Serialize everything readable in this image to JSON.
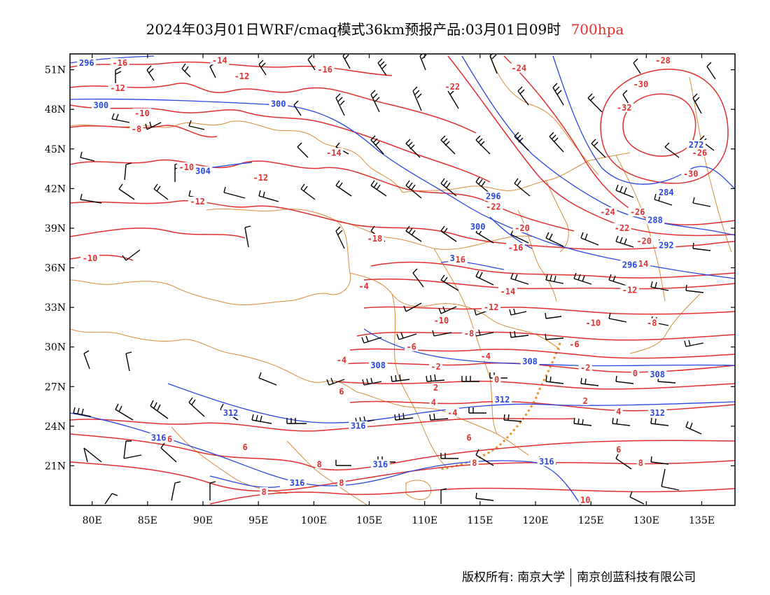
{
  "title": {
    "main": "2024年03月01日WRF/cmaq模式36km预报产品:03月01日09时",
    "level": "700hpa"
  },
  "colors": {
    "temperature": "#e03030",
    "height": "#2a46e0",
    "boundary": "#d98c3a",
    "wind": "#000000"
  },
  "axes": {
    "lat_ticks": [
      {
        "value": 51,
        "label": "51N"
      },
      {
        "value": 48,
        "label": "48N"
      },
      {
        "value": 45,
        "label": "45N"
      },
      {
        "value": 42,
        "label": "42N"
      },
      {
        "value": 39,
        "label": "39N"
      },
      {
        "value": 36,
        "label": "36N"
      },
      {
        "value": 33,
        "label": "33N"
      },
      {
        "value": 30,
        "label": "30N"
      },
      {
        "value": 27,
        "label": "27N"
      },
      {
        "value": 24,
        "label": "24N"
      },
      {
        "value": 21,
        "label": "21N"
      }
    ],
    "lon_ticks": [
      {
        "value": 80,
        "label": "80E"
      },
      {
        "value": 85,
        "label": "85E"
      },
      {
        "value": 90,
        "label": "90E"
      },
      {
        "value": 95,
        "label": "95E"
      },
      {
        "value": 100,
        "label": "100E"
      },
      {
        "value": 105,
        "label": "105E"
      },
      {
        "value": 110,
        "label": "110E"
      },
      {
        "value": 115,
        "label": "115E"
      },
      {
        "value": 120,
        "label": "120E"
      },
      {
        "value": 125,
        "label": "125E"
      },
      {
        "value": 130,
        "label": "130E"
      },
      {
        "value": 135,
        "label": "135E"
      }
    ]
  },
  "temperature_labels": [
    {
      "text": "-16",
      "lon": 82.5,
      "lat": 51.4
    },
    {
      "text": "-14",
      "lon": 91.5,
      "lat": 51.6
    },
    {
      "text": "-12",
      "lon": 93.5,
      "lat": 50.4
    },
    {
      "text": "-16",
      "lon": 101.0,
      "lat": 50.9
    },
    {
      "text": "-12",
      "lon": 82.3,
      "lat": 49.5
    },
    {
      "text": "-10",
      "lon": 84.5,
      "lat": 47.6
    },
    {
      "text": "-8",
      "lon": 84.0,
      "lat": 46.4
    },
    {
      "text": "-22",
      "lon": 112.5,
      "lat": 49.6
    },
    {
      "text": "-24",
      "lon": 118.5,
      "lat": 51.0
    },
    {
      "text": "-28",
      "lon": 131.5,
      "lat": 51.6
    },
    {
      "text": "-30",
      "lon": 129.5,
      "lat": 49.8
    },
    {
      "text": "-32",
      "lon": 128.0,
      "lat": 48.0
    },
    {
      "text": "-10",
      "lon": 88.5,
      "lat": 43.5
    },
    {
      "text": "-14",
      "lon": 101.8,
      "lat": 44.6
    },
    {
      "text": "-12",
      "lon": 95.2,
      "lat": 42.7
    },
    {
      "text": "-12",
      "lon": 89.5,
      "lat": 40.9
    },
    {
      "text": "-26",
      "lon": 134.8,
      "lat": 44.6
    },
    {
      "text": "-30",
      "lon": 134.0,
      "lat": 43.0
    },
    {
      "text": "-22",
      "lon": 116.2,
      "lat": 40.5
    },
    {
      "text": "-24",
      "lon": 126.5,
      "lat": 40.1
    },
    {
      "text": "-26",
      "lon": 129.2,
      "lat": 40.1
    },
    {
      "text": "-20",
      "lon": 118.8,
      "lat": 38.9
    },
    {
      "text": "-22",
      "lon": 127.8,
      "lat": 38.9
    },
    {
      "text": "-18",
      "lon": 105.5,
      "lat": 38.1
    },
    {
      "text": "-20",
      "lon": 129.8,
      "lat": 37.9
    },
    {
      "text": "-16",
      "lon": 118.2,
      "lat": 37.4
    },
    {
      "text": "-16",
      "lon": 113.0,
      "lat": 36.5
    },
    {
      "text": "-14",
      "lon": 129.5,
      "lat": 36.2
    },
    {
      "text": "-10",
      "lon": 79.8,
      "lat": 36.6
    },
    {
      "text": "-4",
      "lon": 104.5,
      "lat": 34.5
    },
    {
      "text": "-14",
      "lon": 117.5,
      "lat": 34.1
    },
    {
      "text": "-12",
      "lon": 128.5,
      "lat": 34.2
    },
    {
      "text": "-12",
      "lon": 116.0,
      "lat": 32.9
    },
    {
      "text": "-10",
      "lon": 111.5,
      "lat": 31.9
    },
    {
      "text": "-10",
      "lon": 125.2,
      "lat": 31.7
    },
    {
      "text": "-8",
      "lon": 130.5,
      "lat": 31.7
    },
    {
      "text": "-8",
      "lon": 114.0,
      "lat": 30.9
    },
    {
      "text": "-6",
      "lon": 123.5,
      "lat": 30.1
    },
    {
      "text": "-6",
      "lon": 108.8,
      "lat": 29.9
    },
    {
      "text": "-4",
      "lon": 115.5,
      "lat": 29.2
    },
    {
      "text": "-4",
      "lon": 102.5,
      "lat": 28.9
    },
    {
      "text": "-2",
      "lon": 111.0,
      "lat": 28.4
    },
    {
      "text": "-2",
      "lon": 124.5,
      "lat": 28.3
    },
    {
      "text": "0",
      "lon": 116.5,
      "lat": 27.4
    },
    {
      "text": "0",
      "lon": 129.0,
      "lat": 27.9
    },
    {
      "text": "2",
      "lon": 111.0,
      "lat": 26.8
    },
    {
      "text": "4",
      "lon": 110.8,
      "lat": 25.7
    },
    {
      "text": "2",
      "lon": 124.5,
      "lat": 25.8
    },
    {
      "text": "6",
      "lon": 102.5,
      "lat": 26.5
    },
    {
      "text": "-4",
      "lon": 112.5,
      "lat": 24.9
    },
    {
      "text": "4",
      "lon": 127.5,
      "lat": 25.0
    },
    {
      "text": "6",
      "lon": 93.8,
      "lat": 22.3
    },
    {
      "text": "6",
      "lon": 87.0,
      "lat": 22.9
    },
    {
      "text": "6",
      "lon": 114.0,
      "lat": 23.0
    },
    {
      "text": "6",
      "lon": 127.5,
      "lat": 22.1
    },
    {
      "text": "8",
      "lon": 100.5,
      "lat": 21.0
    },
    {
      "text": "8",
      "lon": 114.5,
      "lat": 21.1
    },
    {
      "text": "8",
      "lon": 129.5,
      "lat": 21.1
    },
    {
      "text": "8",
      "lon": 102.5,
      "lat": 19.6
    },
    {
      "text": "8",
      "lon": 95.5,
      "lat": 18.9
    },
    {
      "text": "10",
      "lon": 124.5,
      "lat": 18.3
    }
  ],
  "height_labels": [
    {
      "text": "296",
      "lon": 79.5,
      "lat": 51.4
    },
    {
      "text": "300",
      "lon": 80.8,
      "lat": 48.2
    },
    {
      "text": "300",
      "lon": 96.8,
      "lat": 48.3
    },
    {
      "text": "304",
      "lon": 90.0,
      "lat": 43.2
    },
    {
      "text": "272",
      "lon": 134.5,
      "lat": 45.2
    },
    {
      "text": "296",
      "lon": 116.2,
      "lat": 41.3
    },
    {
      "text": "284",
      "lon": 131.8,
      "lat": 41.6
    },
    {
      "text": "288",
      "lon": 130.8,
      "lat": 39.5
    },
    {
      "text": "300",
      "lon": 114.8,
      "lat": 39.0
    },
    {
      "text": "292",
      "lon": 131.8,
      "lat": 37.6
    },
    {
      "text": "296",
      "lon": 128.5,
      "lat": 36.1
    },
    {
      "text": "3",
      "lon": 112.5,
      "lat": 36.6
    },
    {
      "text": "308",
      "lon": 105.8,
      "lat": 28.5
    },
    {
      "text": "308",
      "lon": 119.5,
      "lat": 28.8
    },
    {
      "text": "308",
      "lon": 131.0,
      "lat": 27.8
    },
    {
      "text": "312",
      "lon": 117.0,
      "lat": 25.9
    },
    {
      "text": "312",
      "lon": 92.5,
      "lat": 24.9
    },
    {
      "text": "312",
      "lon": 131.0,
      "lat": 24.9
    },
    {
      "text": "316",
      "lon": 86.0,
      "lat": 23.0
    },
    {
      "text": "316",
      "lon": 104.0,
      "lat": 23.9
    },
    {
      "text": "316",
      "lon": 106.0,
      "lat": 21.0
    },
    {
      "text": "316",
      "lon": 121.0,
      "lat": 21.2
    },
    {
      "text": "316",
      "lon": 98.5,
      "lat": 19.6
    }
  ],
  "footer": {
    "left": "版权所有: 南京大学",
    "right": "南京创蓝科技有限公司"
  }
}
